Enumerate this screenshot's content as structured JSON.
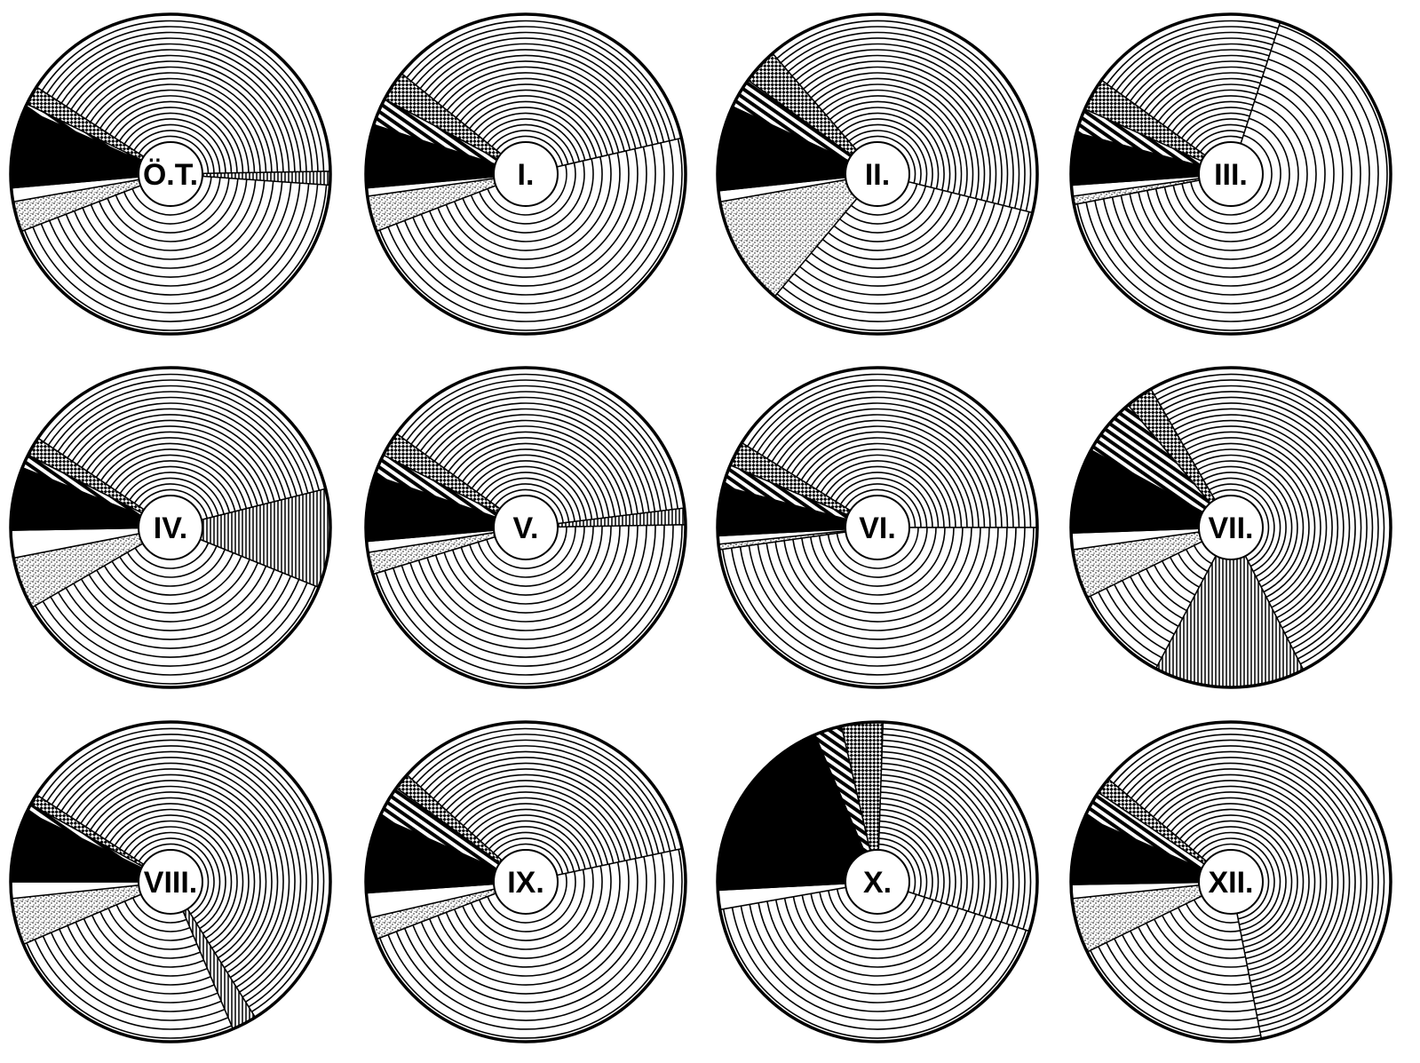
{
  "figure": {
    "background": "#ffffff",
    "ink": "#000000",
    "fill_styles": {
      "dense_rings": "dense concentric arcs",
      "sparse_rings": "sparse concentric arcs",
      "vertical_hatch": "fine vertical lines",
      "stipple": "dotted/stippled",
      "blank": "white",
      "solid": "solid black",
      "ladder": "ladder/bar pattern",
      "crosshatch": "checked crosshatch"
    }
  },
  "chart_data": [
    {
      "type": "pie",
      "label": "Ö.T.",
      "slices": [
        {
          "style": "dense_rings",
          "from": -57,
          "to": 89
        },
        {
          "style": "vertical_hatch",
          "from": 89,
          "to": 94
        },
        {
          "style": "sparse_rings",
          "from": 94,
          "to": 249
        },
        {
          "style": "stipple",
          "from": 249,
          "to": 260
        },
        {
          "style": "blank",
          "from": 260,
          "to": 265
        },
        {
          "style": "solid",
          "from": 265,
          "to": 294
        },
        {
          "style": "ladder",
          "from": 294,
          "to": 296
        },
        {
          "style": "crosshatch",
          "from": 296,
          "to": 303
        }
      ]
    },
    {
      "type": "pie",
      "label": "I.",
      "slices": [
        {
          "style": "dense_rings",
          "from": -51,
          "to": 77
        },
        {
          "style": "sparse_rings",
          "from": 77,
          "to": 249
        },
        {
          "style": "stipple",
          "from": 249,
          "to": 262
        },
        {
          "style": "blank",
          "from": 262,
          "to": 265
        },
        {
          "style": "solid",
          "from": 265,
          "to": 288
        },
        {
          "style": "ladder",
          "from": 288,
          "to": 298
        },
        {
          "style": "crosshatch",
          "from": 298,
          "to": 309
        }
      ]
    },
    {
      "type": "pie",
      "label": "II.",
      "slices": [
        {
          "style": "dense_rings",
          "from": -41,
          "to": 104
        },
        {
          "style": "sparse_rings",
          "from": 104,
          "to": 220
        },
        {
          "style": "stipple",
          "from": 220,
          "to": 260
        },
        {
          "style": "blank",
          "from": 260,
          "to": 264
        },
        {
          "style": "solid",
          "from": 264,
          "to": 295
        },
        {
          "style": "ladder",
          "from": 295,
          "to": 306
        },
        {
          "style": "crosshatch",
          "from": 306,
          "to": 319
        }
      ]
    },
    {
      "type": "pie",
      "label": "III.",
      "slices": [
        {
          "style": "dense_rings",
          "from": -54,
          "to": 18
        },
        {
          "style": "sparse_rings",
          "from": 18,
          "to": 259
        },
        {
          "style": "stipple",
          "from": 259,
          "to": 262
        },
        {
          "style": "blank",
          "from": 262,
          "to": 266
        },
        {
          "style": "solid",
          "from": 266,
          "to": 285
        },
        {
          "style": "ladder",
          "from": 285,
          "to": 294
        },
        {
          "style": "crosshatch",
          "from": 294,
          "to": 306
        }
      ]
    },
    {
      "type": "pie",
      "label": "IV.",
      "slices": [
        {
          "style": "dense_rings",
          "from": -56,
          "to": 76
        },
        {
          "style": "vertical_hatch",
          "from": 76,
          "to": 112
        },
        {
          "style": "sparse_rings",
          "from": 112,
          "to": 240
        },
        {
          "style": "stipple",
          "from": 240,
          "to": 259
        },
        {
          "style": "blank",
          "from": 259,
          "to": 269
        },
        {
          "style": "solid",
          "from": 269,
          "to": 292
        },
        {
          "style": "ladder",
          "from": 292,
          "to": 297
        },
        {
          "style": "crosshatch",
          "from": 297,
          "to": 304
        }
      ]
    },
    {
      "type": "pie",
      "label": "V.",
      "slices": [
        {
          "style": "dense_rings",
          "from": -54,
          "to": 83
        },
        {
          "style": "vertical_hatch",
          "from": 83,
          "to": 89
        },
        {
          "style": "sparse_rings",
          "from": 89,
          "to": 253
        },
        {
          "style": "stipple",
          "from": 253,
          "to": 261
        },
        {
          "style": "blank",
          "from": 261,
          "to": 265
        },
        {
          "style": "solid",
          "from": 265,
          "to": 289
        },
        {
          "style": "ladder",
          "from": 289,
          "to": 297
        },
        {
          "style": "crosshatch",
          "from": 297,
          "to": 306
        }
      ]
    },
    {
      "type": "pie",
      "label": "VI.",
      "slices": [
        {
          "style": "dense_rings",
          "from": -58,
          "to": 90
        },
        {
          "style": "sparse_rings",
          "from": 90,
          "to": 262
        },
        {
          "style": "stipple",
          "from": 262,
          "to": 264
        },
        {
          "style": "blank",
          "from": 264,
          "to": 267
        },
        {
          "style": "solid",
          "from": 267,
          "to": 285
        },
        {
          "style": "ladder",
          "from": 285,
          "to": 293
        },
        {
          "style": "crosshatch",
          "from": 293,
          "to": 302
        }
      ]
    },
    {
      "type": "pie",
      "label": "VII.",
      "slices": [
        {
          "style": "dense_rings",
          "from": -30,
          "to": 153
        },
        {
          "style": "vertical_hatch",
          "from": 153,
          "to": 208
        },
        {
          "style": "sparse_rings",
          "from": 208,
          "to": 244
        },
        {
          "style": "stipple",
          "from": 244,
          "to": 262
        },
        {
          "style": "blank",
          "from": 262,
          "to": 268
        },
        {
          "style": "solid",
          "from": 268,
          "to": 299
        },
        {
          "style": "ladder",
          "from": 299,
          "to": 320
        },
        {
          "style": "crosshatch",
          "from": 320,
          "to": 330
        }
      ]
    },
    {
      "type": "pie",
      "label": "VIII.",
      "slices": [
        {
          "style": "dense_rings",
          "from": -57,
          "to": 148
        },
        {
          "style": "vertical_hatch",
          "from": 148,
          "to": 157
        },
        {
          "style": "sparse_rings",
          "from": 157,
          "to": 247
        },
        {
          "style": "stipple",
          "from": 247,
          "to": 264
        },
        {
          "style": "blank",
          "from": 264,
          "to": 270
        },
        {
          "style": "solid",
          "from": 270,
          "to": 296
        },
        {
          "style": "ladder",
          "from": 296,
          "to": 299
        },
        {
          "style": "crosshatch",
          "from": 299,
          "to": 303
        }
      ]
    },
    {
      "type": "pie",
      "label": "IX.",
      "slices": [
        {
          "style": "dense_rings",
          "from": -48,
          "to": 78
        },
        {
          "style": "sparse_rings",
          "from": 78,
          "to": 249
        },
        {
          "style": "stipple",
          "from": 249,
          "to": 257
        },
        {
          "style": "blank",
          "from": 257,
          "to": 266
        },
        {
          "style": "solid",
          "from": 266,
          "to": 294
        },
        {
          "style": "ladder",
          "from": 294,
          "to": 306
        },
        {
          "style": "crosshatch",
          "from": 306,
          "to": 312
        }
      ]
    },
    {
      "type": "pie",
      "label": "X.",
      "slices": [
        {
          "style": "dense_rings",
          "from": 2,
          "to": 108
        },
        {
          "style": "sparse_rings",
          "from": 108,
          "to": 260
        },
        {
          "style": "blank",
          "from": 260,
          "to": 267
        },
        {
          "style": "solid",
          "from": 267,
          "to": 337
        },
        {
          "style": "ladder",
          "from": 337,
          "to": 347
        },
        {
          "style": "crosshatch",
          "from": 347,
          "to": 362
        }
      ]
    },
    {
      "type": "pie",
      "label": "XII.",
      "slices": [
        {
          "style": "dense_rings",
          "from": -50,
          "to": 169
        },
        {
          "style": "sparse_rings",
          "from": 169,
          "to": 244
        },
        {
          "style": "stipple",
          "from": 244,
          "to": 264
        },
        {
          "style": "blank",
          "from": 264,
          "to": 269
        },
        {
          "style": "solid",
          "from": 269,
          "to": 294
        },
        {
          "style": "ladder",
          "from": 294,
          "to": 304
        },
        {
          "style": "crosshatch",
          "from": 304,
          "to": 310
        }
      ]
    }
  ]
}
